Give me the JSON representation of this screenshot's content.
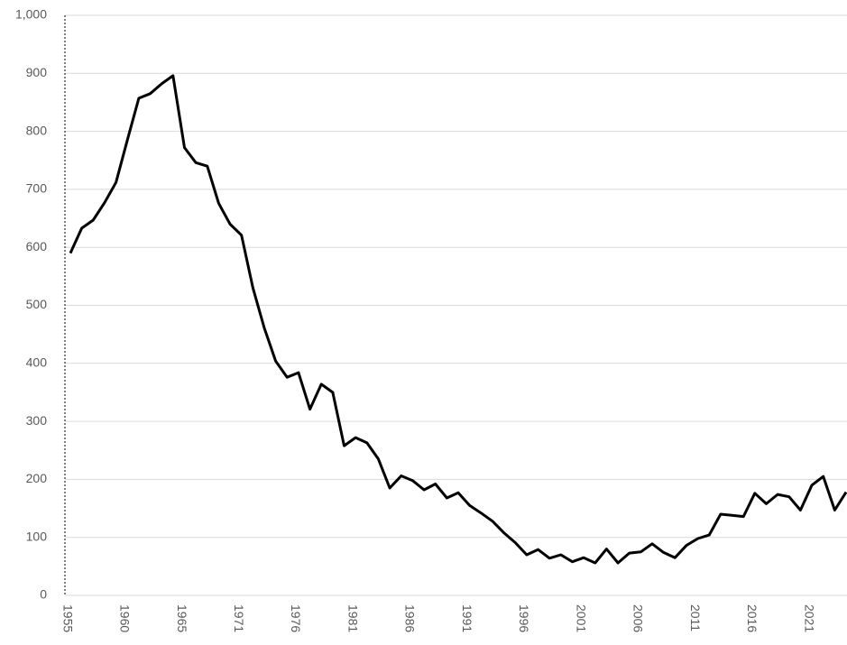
{
  "chart_data": {
    "type": "line",
    "categories": [
      "1955",
      null,
      null,
      null,
      null,
      "1960",
      null,
      null,
      null,
      null,
      "1965",
      null,
      null,
      null,
      null,
      "1971",
      null,
      null,
      null,
      null,
      "1976",
      null,
      null,
      null,
      null,
      "1981",
      null,
      null,
      null,
      null,
      "1986",
      null,
      null,
      null,
      null,
      "1991",
      null,
      null,
      null,
      null,
      "1996",
      null,
      null,
      null,
      null,
      "2001",
      null,
      null,
      null,
      null,
      "2006",
      null,
      null,
      null,
      null,
      "2011",
      null,
      null,
      null,
      null,
      "2016",
      null,
      null,
      null,
      null,
      "2021",
      null,
      null,
      null
    ],
    "values": [
      590,
      633,
      647,
      677,
      712,
      785,
      857,
      865,
      882,
      896,
      772,
      746,
      740,
      676,
      640,
      621,
      530,
      461,
      404,
      376,
      384,
      321,
      364,
      350,
      258,
      272,
      263,
      235,
      185,
      206,
      198,
      182,
      192,
      168,
      177,
      155,
      142,
      128,
      108,
      91,
      70,
      79,
      64,
      70,
      58,
      65,
      56,
      80,
      56,
      73,
      75,
      89,
      74,
      65,
      86,
      98,
      104,
      140,
      138,
      136,
      176,
      158,
      174,
      170,
      147,
      190,
      205,
      147,
      178
    ],
    "color": "#000000",
    "ylim": [
      0,
      1000
    ],
    "yticks": [
      0,
      100,
      200,
      300,
      400,
      500,
      600,
      700,
      800,
      900,
      {
        "value": 1000,
        "label": "1,000"
      }
    ],
    "grid": true
  }
}
